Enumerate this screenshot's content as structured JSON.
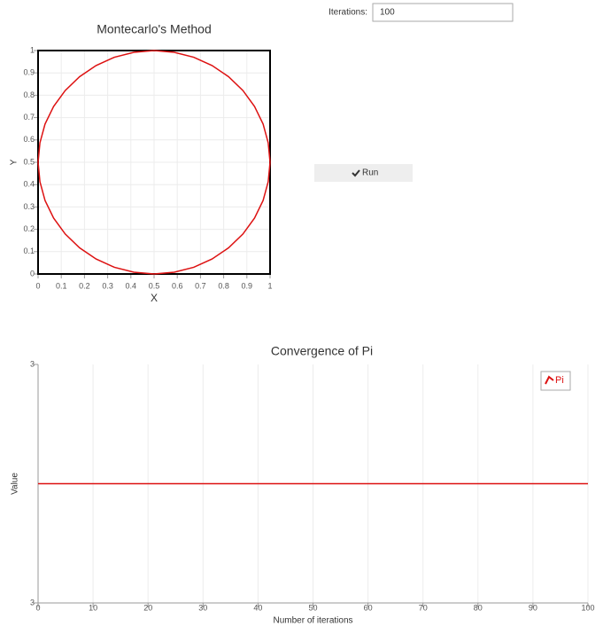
{
  "controls": {
    "iterations_label": "Iterations:",
    "iterations_value": "100",
    "run_label": "Run"
  },
  "chart_data": [
    {
      "type": "line",
      "title": "Montecarlo's Method",
      "x_label": "X",
      "y_label": "Y",
      "color": "#dd1111",
      "x": [
        1,
        0.992,
        0.97,
        0.933,
        0.883,
        0.821,
        0.75,
        0.671,
        0.587,
        0.5,
        0.413,
        0.329,
        0.25,
        0.179,
        0.117,
        0.067,
        0.03,
        0.008,
        0,
        0.008,
        0.03,
        0.067,
        0.117,
        0.179,
        0.25,
        0.329,
        0.413,
        0.5,
        0.587,
        0.671,
        0.75,
        0.821,
        0.883,
        0.933,
        0.97,
        0.992,
        1
      ],
      "values": [
        0.5,
        0.587,
        0.671,
        0.75,
        0.821,
        0.883,
        0.933,
        0.97,
        0.992,
        1,
        0.992,
        0.97,
        0.933,
        0.883,
        0.821,
        0.75,
        0.671,
        0.587,
        0.5,
        0.413,
        0.329,
        0.25,
        0.179,
        0.117,
        0.067,
        0.03,
        0.008,
        0,
        0.008,
        0.03,
        0.067,
        0.117,
        0.179,
        0.25,
        0.329,
        0.413,
        0.5
      ],
      "xlim": [
        0,
        1
      ],
      "ylim": [
        0,
        1
      ],
      "xticks": [
        0,
        0.1,
        0.2,
        0.3,
        0.4,
        0.5,
        0.6,
        0.7,
        0.8,
        0.9,
        1
      ],
      "yticks": [
        0,
        0.1,
        0.2,
        0.3,
        0.4,
        0.5,
        0.6,
        0.7,
        0.8,
        0.9,
        1
      ],
      "grid": true
    },
    {
      "type": "line",
      "title": "Convergence of Pi",
      "x_label": "Number of iterations",
      "y_label": "Value",
      "x": [
        0,
        100
      ],
      "series": [
        {
          "name": "Pi",
          "color": "#dd1111",
          "values": [
            3.14,
            3.14
          ]
        }
      ],
      "xlim": [
        0,
        100
      ],
      "ylim": [
        3.04,
        3.24
      ],
      "xticks": [
        0,
        10,
        20,
        30,
        40,
        50,
        60,
        70,
        80,
        90,
        100
      ],
      "yticks": [
        {
          "value": 3.04,
          "label": "3"
        },
        {
          "value": 3.24,
          "label": "3"
        }
      ],
      "grid": true,
      "legend": "top-right"
    }
  ]
}
